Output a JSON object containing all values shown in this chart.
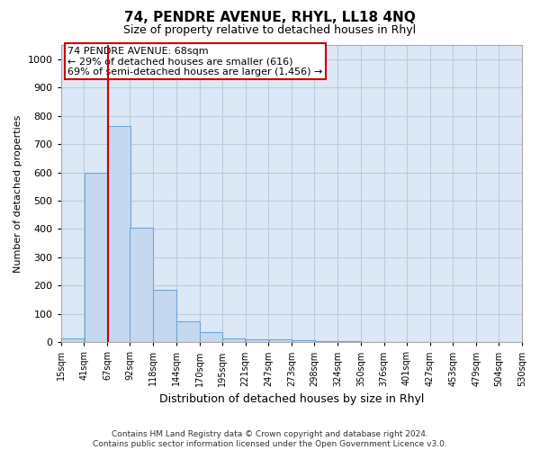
{
  "title": "74, PENDRE AVENUE, RHYL, LL18 4NQ",
  "subtitle": "Size of property relative to detached houses in Rhyl",
  "xlabel": "Distribution of detached houses by size in Rhyl",
  "ylabel": "Number of detached properties",
  "footer_line1": "Contains HM Land Registry data © Crown copyright and database right 2024.",
  "footer_line2": "Contains public sector information licensed under the Open Government Licence v3.0.",
  "bar_values": [
    12,
    600,
    765,
    405,
    185,
    75,
    37,
    15,
    10,
    10,
    8,
    5,
    3,
    2,
    1,
    1,
    1,
    0,
    0,
    0
  ],
  "bar_left_edges": [
    15,
    41,
    67,
    92,
    118,
    144,
    170,
    195,
    221,
    247,
    273,
    298,
    324,
    350,
    376,
    401,
    427,
    453,
    479,
    504
  ],
  "bin_width": 26,
  "bar_color": "#c5d8f0",
  "bar_edgecolor": "#6ea8d8",
  "plot_bg_color": "#dce8f5",
  "grid_color": "#b8cede",
  "fig_bg_color": "#ffffff",
  "property_size": 68,
  "vline_color": "#cc0000",
  "annotation_text_line1": "74 PENDRE AVENUE: 68sqm",
  "annotation_text_line2": "← 29% of detached houses are smaller (616)",
  "annotation_text_line3": "69% of semi-detached houses are larger (1,456) →",
  "annotation_box_color": "#cc0000",
  "ylim": [
    0,
    1050
  ],
  "yticks": [
    0,
    100,
    200,
    300,
    400,
    500,
    600,
    700,
    800,
    900,
    1000
  ],
  "x_tick_labels": [
    "15sqm",
    "41sqm",
    "67sqm",
    "92sqm",
    "118sqm",
    "144sqm",
    "170sqm",
    "195sqm",
    "221sqm",
    "247sqm",
    "273sqm",
    "298sqm",
    "324sqm",
    "350sqm",
    "376sqm",
    "401sqm",
    "427sqm",
    "453sqm",
    "479sqm",
    "504sqm",
    "530sqm"
  ],
  "tick_positions": [
    15,
    41,
    67,
    92,
    118,
    144,
    170,
    195,
    221,
    247,
    273,
    298,
    324,
    350,
    376,
    401,
    427,
    453,
    479,
    504,
    530
  ]
}
